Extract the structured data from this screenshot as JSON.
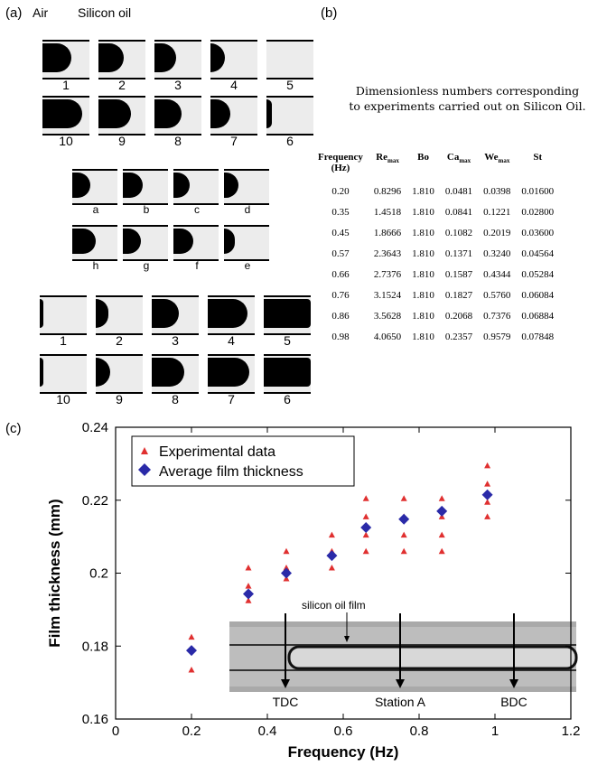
{
  "panels": {
    "a_label": "(a)",
    "b_label": "(b)",
    "c_label": "(c)"
  },
  "panel_a": {
    "air_label": "Air",
    "oil_label": "Silicon oil",
    "row1": [
      "1",
      "2",
      "3",
      "4",
      "5"
    ],
    "row2": [
      "10",
      "9",
      "8",
      "7",
      "6"
    ],
    "row3": [
      "a",
      "b",
      "c",
      "d"
    ],
    "row4": [
      "h",
      "g",
      "f",
      "e"
    ],
    "row5": [
      "1",
      "2",
      "3",
      "4",
      "5"
    ],
    "row6": [
      "10",
      "9",
      "8",
      "7",
      "6"
    ]
  },
  "panel_b": {
    "title_line1": "Dimensionless numbers corresponding",
    "title_line2": "to experiments carried out on Silicon Oil.",
    "headers": [
      {
        "main": "Frequency",
        "sub": "",
        "line2": "(Hz)"
      },
      {
        "main": "Re",
        "sub": "max",
        "line2": ""
      },
      {
        "main": "Bo",
        "sub": "",
        "line2": ""
      },
      {
        "main": "Ca",
        "sub": "max",
        "line2": ""
      },
      {
        "main": "We",
        "sub": "max",
        "line2": ""
      },
      {
        "main": "St",
        "sub": "",
        "line2": ""
      }
    ],
    "rows": [
      [
        "0.20",
        "0.8296",
        "1.810",
        "0.0481",
        "0.0398",
        "0.01600"
      ],
      [
        "0.35",
        "1.4518",
        "1.810",
        "0.0841",
        "0.1221",
        "0.02800"
      ],
      [
        "0.45",
        "1.8666",
        "1.810",
        "0.1082",
        "0.2019",
        "0.03600"
      ],
      [
        "0.57",
        "2.3643",
        "1.810",
        "0.1371",
        "0.3240",
        "0.04564"
      ],
      [
        "0.66",
        "2.7376",
        "1.810",
        "0.1587",
        "0.4344",
        "0.05284"
      ],
      [
        "0.76",
        "3.1524",
        "1.810",
        "0.1827",
        "0.5760",
        "0.06084"
      ],
      [
        "0.86",
        "3.5628",
        "1.810",
        "0.2068",
        "0.7376",
        "0.06884"
      ],
      [
        "0.98",
        "4.0650",
        "1.810",
        "0.2357",
        "0.9579",
        "0.07848"
      ]
    ]
  },
  "chart_data": {
    "type": "scatter",
    "xlabel": "Frequency (Hz)",
    "ylabel": "Film thickness (mm)",
    "xlim": [
      0,
      1.2
    ],
    "ylim": [
      0.16,
      0.24
    ],
    "xticks": [
      "0",
      "0.2",
      "0.4",
      "0.6",
      "0.8",
      "1",
      "1.2"
    ],
    "yticks": [
      "0.16",
      "0.18",
      "0.2",
      "0.22",
      "0.24"
    ],
    "legend_position": "top-left",
    "series": [
      {
        "name": "Experimental data",
        "marker": "triangle",
        "color": "#e03030",
        "points": [
          [
            0.2,
            0.1825
          ],
          [
            0.2,
            0.1735
          ],
          [
            0.35,
            0.2015
          ],
          [
            0.35,
            0.1965
          ],
          [
            0.35,
            0.1925
          ],
          [
            0.45,
            0.206
          ],
          [
            0.45,
            0.2015
          ],
          [
            0.45,
            0.1985
          ],
          [
            0.57,
            0.2105
          ],
          [
            0.57,
            0.206
          ],
          [
            0.57,
            0.2015
          ],
          [
            0.66,
            0.2205
          ],
          [
            0.66,
            0.2155
          ],
          [
            0.66,
            0.2105
          ],
          [
            0.66,
            0.206
          ],
          [
            0.76,
            0.2205
          ],
          [
            0.76,
            0.2155
          ],
          [
            0.76,
            0.2105
          ],
          [
            0.76,
            0.206
          ],
          [
            0.86,
            0.2205
          ],
          [
            0.86,
            0.2155
          ],
          [
            0.86,
            0.2105
          ],
          [
            0.86,
            0.206
          ],
          [
            0.98,
            0.2295
          ],
          [
            0.98,
            0.2245
          ],
          [
            0.98,
            0.2195
          ],
          [
            0.98,
            0.2155
          ]
        ]
      },
      {
        "name": "Average film thickness",
        "marker": "diamond",
        "color": "#2a2aa8",
        "points": [
          [
            0.2,
            0.1788
          ],
          [
            0.35,
            0.1943
          ],
          [
            0.45,
            0.2
          ],
          [
            0.57,
            0.2048
          ],
          [
            0.66,
            0.2125
          ],
          [
            0.76,
            0.2148
          ],
          [
            0.86,
            0.217
          ],
          [
            0.98,
            0.2215
          ]
        ]
      }
    ],
    "inset": {
      "film_label": "silicon oil film",
      "markers": [
        "TDC",
        "Station A",
        "BDC"
      ]
    }
  }
}
